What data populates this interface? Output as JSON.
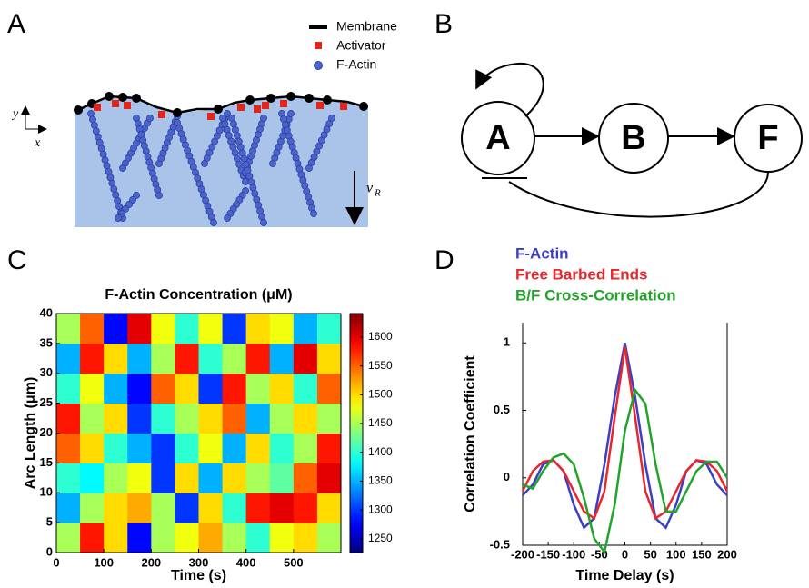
{
  "panels": {
    "a": {
      "label": "A",
      "legend": [
        "Membrane",
        "Activator",
        "F-Actin"
      ],
      "axes": [
        "y",
        "x"
      ],
      "velocity": {
        "symbol": "v",
        "subscript": "R"
      }
    },
    "b": {
      "label": "B",
      "nodes": [
        "A",
        "B",
        "F"
      ]
    },
    "c": {
      "label": "C"
    },
    "d": {
      "label": "D"
    }
  },
  "chart_data": [
    {
      "type": "heatmap",
      "title": "F-Actin Concentration (μM)",
      "x_label": "Time (s)",
      "y_label": "Arc Length (μm)",
      "colormap": "jet",
      "xbins": [
        0,
        50,
        100,
        150,
        200,
        250,
        300,
        350,
        400,
        450,
        500,
        550,
        600
      ],
      "ybins": [
        0,
        5,
        10,
        15,
        20,
        25,
        30,
        35,
        40
      ],
      "xlim": [
        0,
        600
      ],
      "ylim": [
        0,
        40
      ],
      "zlim": [
        1226,
        1641
      ],
      "xticks": [
        0,
        100,
        200,
        300,
        400,
        500
      ],
      "yticks": [
        0,
        5,
        10,
        15,
        20,
        25,
        30,
        35,
        40
      ],
      "zticks": [
        1250,
        1300,
        1350,
        1400,
        1450,
        1500,
        1550,
        1600
      ],
      "z": [
        [
          1450,
          1580,
          1500,
          1280,
          1450,
          1480,
          1520,
          1450,
          1400,
          1480,
          1500,
          1450
        ],
        [
          1350,
          1450,
          1500,
          1520,
          1450,
          1300,
          1500,
          1400,
          1580,
          1600,
          1580,
          1500
        ],
        [
          1400,
          1380,
          1450,
          1480,
          1300,
          1500,
          1350,
          1500,
          1450,
          1420,
          1550,
          1600
        ],
        [
          1550,
          1500,
          1400,
          1350,
          1300,
          1400,
          1480,
          1350,
          1500,
          1400,
          1450,
          1580
        ],
        [
          1580,
          1450,
          1500,
          1300,
          1400,
          1450,
          1500,
          1550,
          1350,
          1450,
          1500,
          1450
        ],
        [
          1400,
          1480,
          1350,
          1280,
          1550,
          1500,
          1300,
          1580,
          1450,
          1500,
          1400,
          1550
        ],
        [
          1350,
          1580,
          1500,
          1350,
          1450,
          1580,
          1400,
          1450,
          1580,
          1350,
          1600,
          1500
        ],
        [
          1450,
          1550,
          1280,
          1600,
          1480,
          1400,
          1480,
          1300,
          1500,
          1480,
          1350,
          1400
        ]
      ]
    },
    {
      "type": "line",
      "x_label": "Time Delay (s)",
      "y_label": "Correlation Coefficient",
      "legend": "top-left",
      "x": [
        -200,
        -180,
        -160,
        -140,
        -120,
        -100,
        -80,
        -60,
        -40,
        -20,
        0,
        20,
        40,
        60,
        80,
        100,
        120,
        140,
        160,
        180,
        200
      ],
      "xlim": [
        -200,
        200
      ],
      "ylim": [
        -0.5,
        1.15
      ],
      "xticks": [
        -200,
        -150,
        -100,
        -50,
        0,
        50,
        100,
        150,
        200
      ],
      "yticks": [
        -0.5,
        0,
        0.5,
        1
      ],
      "series": [
        {
          "name": "F-Actin",
          "color": "#3a3fc4",
          "values": [
            -0.13,
            -0.05,
            0.1,
            0.13,
            0.05,
            -0.2,
            -0.37,
            -0.3,
            0.1,
            0.6,
            1,
            0.6,
            0.1,
            -0.3,
            -0.37,
            -0.2,
            0.05,
            0.13,
            0.1,
            -0.05,
            -0.13
          ]
        },
        {
          "name": "Free Barbed Ends",
          "color": "#e8262b",
          "values": [
            -0.1,
            0.05,
            0.12,
            0.13,
            0.05,
            -0.1,
            -0.25,
            -0.3,
            -0.1,
            0.45,
            0.97,
            0.45,
            -0.1,
            -0.3,
            -0.25,
            -0.1,
            0.05,
            0.13,
            0.12,
            0.05,
            -0.1
          ]
        },
        {
          "name": "B/F Cross-Correlation",
          "color": "#22a32a",
          "values": [
            -0.05,
            -0.08,
            0.05,
            0.15,
            0.18,
            0.1,
            -0.15,
            -0.45,
            -0.55,
            -0.2,
            0.35,
            0.65,
            0.55,
            0.1,
            -0.25,
            -0.25,
            -0.1,
            0.05,
            0.12,
            0.12,
            0
          ]
        }
      ]
    }
  ]
}
